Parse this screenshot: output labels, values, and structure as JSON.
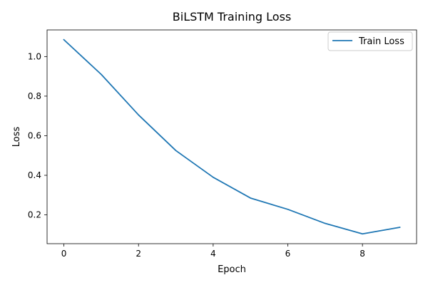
{
  "chart_data": {
    "type": "line",
    "title": "BiLSTM Training Loss",
    "xlabel": "Epoch",
    "ylabel": "Loss",
    "xlim": [
      -0.45,
      9.45
    ],
    "ylim": [
      0.0545,
      1.1345
    ],
    "xticks": [
      0,
      2,
      4,
      6,
      8
    ],
    "xtick_labels": [
      "0",
      "2",
      "4",
      "6",
      "8"
    ],
    "yticks": [
      0.2,
      0.4,
      0.6,
      0.8,
      1.0
    ],
    "ytick_labels": [
      "0.2",
      "0.4",
      "0.6",
      "0.8",
      "1.0"
    ],
    "grid": false,
    "legend_position": "top-right",
    "series": [
      {
        "name": "Train Loss",
        "color": "#1f77b4",
        "x": [
          0,
          1,
          2,
          3,
          4,
          5,
          6,
          7,
          8,
          9
        ],
        "values": [
          1.085,
          0.91,
          0.705,
          0.525,
          0.39,
          0.285,
          0.228,
          0.157,
          0.104,
          0.137
        ]
      }
    ]
  }
}
